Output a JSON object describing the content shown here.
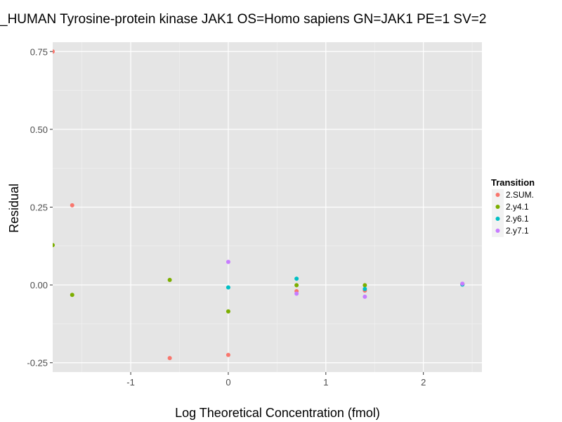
{
  "chart_data": {
    "type": "scatter",
    "title": "_HUMAN Tyrosine-protein kinase JAK1 OS=Homo sapiens GN=JAK1 PE=1 SV=2",
    "xlabel": "Log Theoretical Concentration (fmol)",
    "ylabel": "Residual",
    "xlim": [
      -1.8,
      2.6
    ],
    "ylim": [
      -0.28,
      0.78
    ],
    "x_ticks": [
      -1,
      0,
      1,
      2
    ],
    "x_tick_labels": [
      "-1",
      "0",
      "1",
      "2"
    ],
    "y_ticks": [
      -0.25,
      0,
      0.25,
      0.5,
      0.75
    ],
    "y_tick_labels": [
      "-0.25",
      "0.00",
      "0.25",
      "0.50",
      "0.75"
    ],
    "grid": true,
    "legend": {
      "title": "Transition",
      "position": "right"
    },
    "series": [
      {
        "name": "2.SUM.",
        "color": "#F8766D",
        "points": [
          [
            -1.8,
            0.75
          ],
          [
            -1.6,
            0.256
          ],
          [
            -0.6,
            -0.235
          ],
          [
            0.0,
            -0.225
          ],
          [
            0.7,
            -0.02
          ],
          [
            1.4,
            -0.018
          ],
          [
            2.4,
            0.003
          ]
        ]
      },
      {
        "name": "2.y4.1",
        "color": "#7CAE00",
        "points": [
          [
            -1.8,
            0.128
          ],
          [
            -1.6,
            -0.032
          ],
          [
            -0.6,
            0.016
          ],
          [
            0.0,
            -0.085
          ],
          [
            0.7,
            -0.001
          ],
          [
            1.4,
            -0.001
          ],
          [
            2.4,
            0.002
          ]
        ]
      },
      {
        "name": "2.y6.1",
        "color": "#00BFC4",
        "points": [
          [
            0.0,
            -0.008
          ],
          [
            0.7,
            0.02
          ],
          [
            1.4,
            -0.013
          ],
          [
            2.4,
            0.001
          ]
        ]
      },
      {
        "name": "2.y7.1",
        "color": "#C77CFF",
        "points": [
          [
            0.0,
            0.074
          ],
          [
            0.7,
            -0.028
          ],
          [
            1.4,
            -0.038
          ],
          [
            2.4,
            0.004
          ]
        ]
      }
    ]
  }
}
